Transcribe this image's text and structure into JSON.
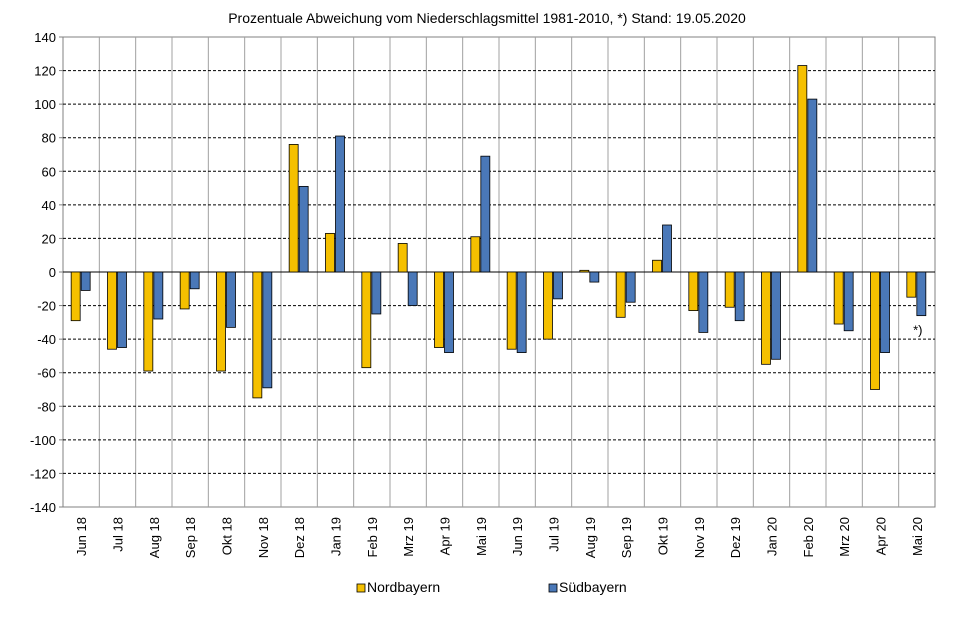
{
  "chart_data": {
    "type": "bar",
    "title": "Prozentuale Abweichung vom Niederschlagsmittel 1981-2010, *) Stand: 19.05.2020",
    "xlabel": "",
    "ylabel": "",
    "ylim": [
      -140,
      140
    ],
    "yticks": [
      140,
      120,
      100,
      80,
      60,
      40,
      20,
      0,
      -20,
      -40,
      -60,
      -80,
      -100,
      -120,
      -140
    ],
    "grid": true,
    "legend_position": "bottom",
    "categories": [
      "Jun 18",
      "Jul 18",
      "Aug 18",
      "Sep 18",
      "Okt 18",
      "Nov 18",
      "Dez 18",
      "Jan 19",
      "Feb 19",
      "Mrz 19",
      "Apr 19",
      "Mai 19",
      "Jun 19",
      "Jul 19",
      "Aug 19",
      "Sep 19",
      "Okt 19",
      "Nov 19",
      "Dez 19",
      "Jan 20",
      "Feb 20",
      "Mrz 20",
      "Apr 20",
      "Mai 20"
    ],
    "series": [
      {
        "name": "Nordbayern",
        "color": "#f5c000",
        "values": [
          -29,
          -46,
          -59,
          -22,
          -59,
          -75,
          76,
          23,
          -57,
          17,
          -45,
          21,
          -46,
          -40,
          1,
          -27,
          7,
          -23,
          -21,
          -55,
          123,
          -31,
          -70,
          -15
        ]
      },
      {
        "name": "Südbayern",
        "color": "#4a78b8",
        "values": [
          -11,
          -45,
          -28,
          -10,
          -33,
          -69,
          51,
          81,
          -25,
          -20,
          -48,
          69,
          -48,
          -16,
          -6,
          -18,
          28,
          -36,
          -29,
          -52,
          103,
          -35,
          -48,
          -26
        ]
      }
    ],
    "annotations": [
      {
        "text": "*)",
        "category": "Mai 20"
      }
    ]
  }
}
